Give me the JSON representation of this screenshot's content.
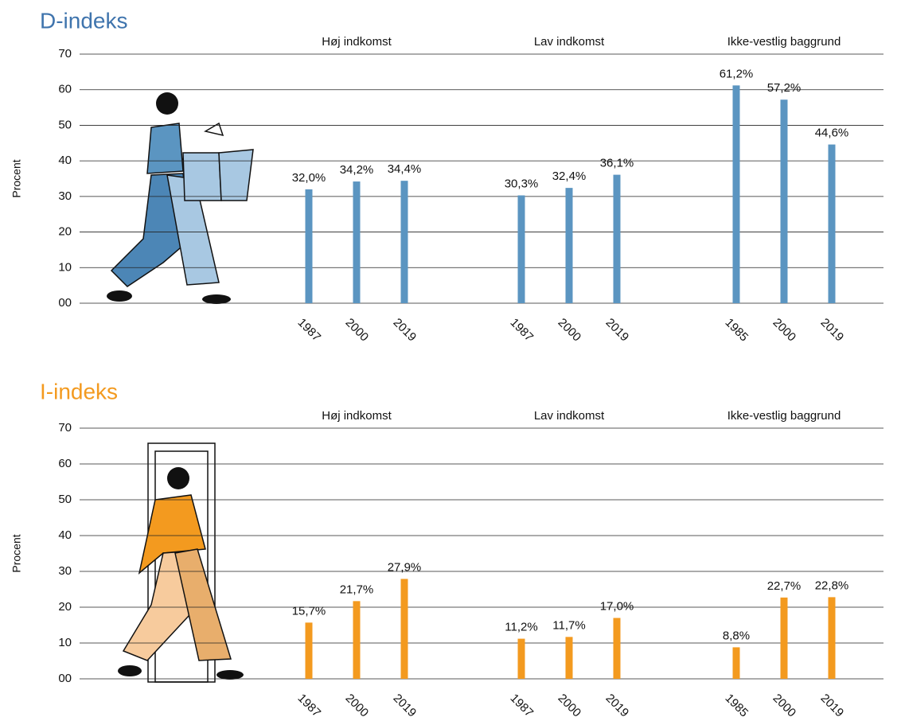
{
  "chart_data": [
    {
      "type": "bar",
      "title": "D-indeks",
      "title_color": "#3f74ad",
      "color": "#5b95c1",
      "ylabel": "Procent",
      "ylim": [
        0,
        70
      ],
      "yticks": [
        {
          "value": 0,
          "label": "00"
        },
        10,
        20,
        30,
        40,
        50,
        60,
        70
      ],
      "grid": true,
      "groups": [
        {
          "name": "Høj indkomst",
          "categories": [
            "1987",
            "2000",
            "2019"
          ],
          "values": [
            32.0,
            34.2,
            34.4
          ],
          "value_labels": [
            "32,0%",
            "34,2%",
            "34,4%"
          ]
        },
        {
          "name": "Lav indkomst",
          "categories": [
            "1987",
            "2000",
            "2019"
          ],
          "values": [
            30.3,
            32.4,
            36.1
          ],
          "value_labels": [
            "30,3%",
            "32,4%",
            "36,1%"
          ]
        },
        {
          "name": "Ikke-vestlig baggrund",
          "categories": [
            "1985",
            "2000",
            "2019"
          ],
          "values": [
            61.2,
            57.2,
            44.6
          ],
          "value_labels": [
            "61,2%",
            "57,2%",
            "44,6%"
          ]
        }
      ]
    },
    {
      "type": "bar",
      "title": "I-indeks",
      "title_color": "#f39a1f",
      "color": "#f39a1f",
      "ylabel": "Procent",
      "ylim": [
        0,
        70
      ],
      "yticks": [
        {
          "value": 0,
          "label": "00"
        },
        10,
        20,
        30,
        40,
        50,
        60,
        70
      ],
      "grid": true,
      "groups": [
        {
          "name": "Høj indkomst",
          "categories": [
            "1987",
            "2000",
            "2019"
          ],
          "values": [
            15.7,
            21.7,
            27.9
          ],
          "value_labels": [
            "15,7%",
            "21,7%",
            "27,9%"
          ]
        },
        {
          "name": "Lav indkomst",
          "categories": [
            "1987",
            "2000",
            "2019"
          ],
          "values": [
            11.2,
            11.7,
            17.0
          ],
          "value_labels": [
            "11,2%",
            "11,7%",
            "17,0%"
          ]
        },
        {
          "name": "Ikke-vestlig baggrund",
          "categories": [
            "1985",
            "2000",
            "2019"
          ],
          "values": [
            8.8,
            22.7,
            22.8
          ],
          "value_labels": [
            "8,8%",
            "22,7%",
            "22,8%"
          ]
        }
      ]
    }
  ]
}
